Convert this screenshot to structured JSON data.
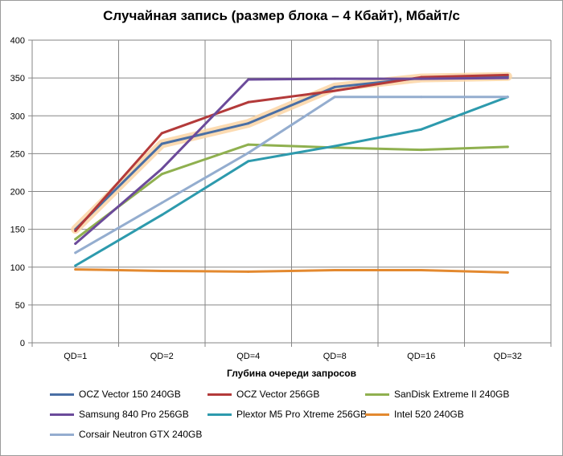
{
  "chart_data": {
    "type": "line",
    "title": "Случайная запись (размер блока – 4 Кбайт), Мбайт/с",
    "xlabel": "Глубина очереди запросов",
    "ylabel": "",
    "categories": [
      "QD=1",
      "QD=2",
      "QD=4",
      "QD=8",
      "QD=16",
      "QD=32"
    ],
    "ylim": [
      0,
      400
    ],
    "yticks": [
      0,
      50,
      100,
      150,
      200,
      250,
      300,
      350,
      400
    ],
    "grid": true,
    "legend_position": "bottom",
    "highlighted_series": "OCZ Vector 150 240GB",
    "highlight_color": "#fbd5a5",
    "series": [
      {
        "name": "OCZ Vector 150 240GB",
        "color": "#4a6fa5",
        "values": [
          150,
          263,
          290,
          338,
          350,
          352
        ]
      },
      {
        "name": "OCZ Vector 256GB",
        "color": "#b33a3a",
        "values": [
          148,
          277,
          318,
          333,
          351,
          354
        ]
      },
      {
        "name": "SanDisk Extreme II 240GB",
        "color": "#8fb04f",
        "values": [
          137,
          223,
          262,
          258,
          255,
          259
        ]
      },
      {
        "name": "Samsung 840 Pro 256GB",
        "color": "#6b4a9a",
        "values": [
          131,
          230,
          348,
          349,
          349,
          350
        ]
      },
      {
        "name": "Plextor M5 Pro Xtreme 256GB",
        "color": "#2d9aad",
        "values": [
          102,
          169,
          240,
          260,
          282,
          325
        ]
      },
      {
        "name": "Intel 520 240GB",
        "color": "#e3892f",
        "values": [
          97,
          95,
          94,
          96,
          96,
          93
        ]
      },
      {
        "name": "Corsair Neutron GTX 240GB",
        "color": "#94adcf",
        "values": [
          119,
          185,
          251,
          325,
          325,
          325
        ]
      }
    ]
  }
}
